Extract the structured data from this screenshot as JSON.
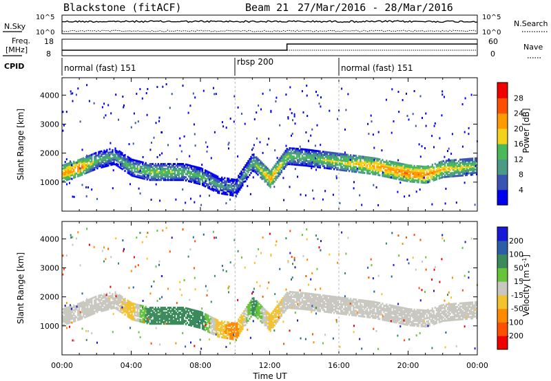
{
  "header": {
    "station": "Blackstone (fitACF)",
    "beam": "Beam 21",
    "dates": "27/Mar/2016 - 28/Mar/2016"
  },
  "noise_panel": {
    "left_label": "N.Sky",
    "left_ticks": [
      "10^5",
      "10^0"
    ],
    "right_label": "N.Search",
    "right_ticks": [
      "10^5",
      "10^0"
    ]
  },
  "freq_panel": {
    "left_label_top": "Freq.",
    "left_label_bottom": "[MHz]",
    "left_ticks": [
      "18",
      "8"
    ],
    "right_label": "Nave",
    "right_ticks": [
      "60",
      "0"
    ]
  },
  "cpid": {
    "label": "CPID",
    "segments": [
      {
        "label": "normal (fast) 151",
        "start_h": 0
      },
      {
        "label": "rbsp 200",
        "start_h": 10
      },
      {
        "label": "normal (fast) 151",
        "start_h": 16
      }
    ]
  },
  "x_axis": {
    "label": "Time UT",
    "ticks": [
      "00:00",
      "04:00",
      "08:00",
      "12:00",
      "16:00",
      "20:00",
      "00:00"
    ]
  },
  "chart_data": [
    {
      "type": "heatmap",
      "title": "",
      "xlabel": "Time UT",
      "ylabel": "Slant Range [km]",
      "xlim_hours": [
        0,
        24
      ],
      "ylim": [
        0,
        4600
      ],
      "yticks": [
        1000,
        2000,
        3000,
        4000
      ],
      "colorbar": {
        "label": "Power [dB]",
        "ticks": [
          "4",
          "8",
          "12",
          "16",
          "20",
          "24",
          "28"
        ],
        "colors": [
          "#0000f0",
          "#3a54b4",
          "#4a9a86",
          "#4cb85c",
          "#f2d21a",
          "#ff9a00",
          "#ff5000",
          "#f00000"
        ]
      },
      "echo_band": {
        "hours": [
          0,
          1,
          2,
          3,
          4,
          5,
          6,
          7,
          8,
          9,
          10,
          11,
          12,
          13,
          14,
          16,
          18,
          20,
          21,
          22,
          23,
          24
        ],
        "center_km": [
          1300,
          1500,
          1750,
          1900,
          1500,
          1350,
          1350,
          1350,
          1200,
          900,
          800,
          1700,
          1100,
          1900,
          1850,
          1700,
          1550,
          1300,
          1250,
          1450,
          1500,
          1550
        ],
        "peak_dB": [
          24,
          26,
          16,
          14,
          16,
          18,
          18,
          16,
          16,
          14,
          12,
          16,
          24,
          18,
          16,
          20,
          24,
          26,
          26,
          22,
          20,
          18
        ]
      }
    },
    {
      "type": "heatmap",
      "title": "",
      "xlabel": "Time UT",
      "ylabel": "Slant Range [km]",
      "xlim_hours": [
        0,
        24
      ],
      "ylim": [
        0,
        4600
      ],
      "yticks": [
        1000,
        2000,
        3000,
        4000
      ],
      "colorbar": {
        "label": "Velocity [m s^-1]",
        "ticks": [
          "200",
          "100",
          "50",
          "15",
          "-15",
          "-50",
          "-100",
          "-200"
        ],
        "colors": [
          "#1818d8",
          "#2c5ea8",
          "#3a8a5c",
          "#66c33a",
          "#c8c8c0",
          "#f2c230",
          "#ff8a00",
          "#ff5000",
          "#f00000"
        ]
      },
      "echo_band": {
        "hours": [
          0,
          1,
          2,
          3,
          4,
          5,
          6,
          7,
          8,
          9,
          10,
          11,
          12,
          13,
          14,
          16,
          18,
          20,
          21,
          22,
          23,
          24
        ],
        "center_km": [
          1300,
          1500,
          1750,
          1900,
          1500,
          1350,
          1350,
          1350,
          1200,
          900,
          800,
          1700,
          1100,
          1900,
          1850,
          1700,
          1550,
          1300,
          1250,
          1450,
          1500,
          1550
        ],
        "velocity": [
          -15,
          -15,
          -15,
          -15,
          -50,
          50,
          50,
          50,
          50,
          -50,
          -100,
          50,
          -50,
          -15,
          -15,
          -15,
          -15,
          -15,
          -15,
          -15,
          -15,
          -15
        ]
      }
    }
  ]
}
